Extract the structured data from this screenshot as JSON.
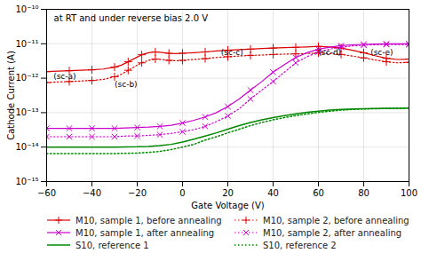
{
  "chart_data": {
    "type": "line",
    "title": "at RT and under reverse bias 2.0 V",
    "xlabel": "Gate Voltage (V)",
    "ylabel": "Cathode Current (A)",
    "xlim": [
      -60,
      100
    ],
    "ylim": [
      1e-15,
      1e-10
    ],
    "xticks": [
      -60,
      -40,
      -20,
      0,
      20,
      40,
      60,
      80,
      100
    ],
    "yticks": [
      {
        "value": 1e-15,
        "label": "10⁻¹⁵"
      },
      {
        "value": 1e-14,
        "label": "10⁻¹⁴"
      },
      {
        "value": 1e-13,
        "label": "10⁻¹³"
      },
      {
        "value": 1e-12,
        "label": "10⁻¹²"
      },
      {
        "value": 1e-11,
        "label": "10⁻¹¹"
      },
      {
        "value": 1e-10,
        "label": "10⁻¹⁰"
      }
    ],
    "log": "y",
    "grid": true,
    "legend": "bottom",
    "annotations": [
      {
        "text": "(sc-a)",
        "x": -57,
        "y": 9.5e-13
      },
      {
        "text": "(sc-b)",
        "x": -30,
        "y": 5.5e-13
      },
      {
        "text": "(sc-c)",
        "x": 17,
        "y": 4.8e-12
      },
      {
        "text": "(sc-d)",
        "x": 60,
        "y": 4.8e-12
      },
      {
        "text": "(sc-e)",
        "x": 83,
        "y": 4.8e-12
      }
    ],
    "series": [
      {
        "name": "M10, sample 1, before annealing",
        "color": "#dd0000",
        "line_style": "solid",
        "marker": "+",
        "x": [
          -60,
          -55,
          -50,
          -45,
          -40,
          -35,
          -30,
          -27,
          -24,
          -21,
          -18,
          -15,
          -12,
          -9,
          -6,
          -3,
          0,
          5,
          10,
          15,
          20,
          25,
          30,
          35,
          40,
          45,
          50,
          55,
          60,
          65,
          70,
          75,
          80,
          85,
          90,
          95,
          100
        ],
        "values": [
          1.55e-12,
          1.6e-12,
          1.65e-12,
          1.7e-12,
          1.75e-12,
          1.85e-12,
          2.1e-12,
          2.4e-12,
          3e-12,
          3.8e-12,
          4.8e-12,
          5.5e-12,
          5.8e-12,
          5.6e-12,
          5.3e-12,
          5.2e-12,
          5.3e-12,
          5.5e-12,
          5.8e-12,
          6.2e-12,
          6.5e-12,
          6.8e-12,
          7e-12,
          7.3e-12,
          7.5e-12,
          7.7e-12,
          7.9e-12,
          8.1e-12,
          8.4e-12,
          8.1e-12,
          7.5e-12,
          6.5e-12,
          5.5e-12,
          4.5e-12,
          3.8e-12,
          3.5e-12,
          3.6e-12
        ]
      },
      {
        "name": "M10, sample 2, before annealing",
        "color": "#dd0000",
        "line_style": "dotted",
        "marker": "+",
        "x": [
          -60,
          -55,
          -50,
          -45,
          -40,
          -35,
          -30,
          -27,
          -24,
          -21,
          -18,
          -15,
          -12,
          -9,
          -6,
          -3,
          0,
          5,
          10,
          15,
          20,
          25,
          30,
          35,
          40,
          45,
          50,
          55,
          60,
          65,
          70,
          75,
          80,
          85,
          90,
          95,
          100
        ],
        "values": [
          7.5e-13,
          7.8e-13,
          8e-13,
          8.3e-13,
          8.6e-13,
          9.2e-13,
          1.1e-12,
          1.3e-12,
          1.7e-12,
          2.2e-12,
          2.8e-12,
          3.3e-12,
          3.6e-12,
          3.5e-12,
          3.3e-12,
          3.2e-12,
          3.3e-12,
          3.5e-12,
          3.7e-12,
          4e-12,
          4.2e-12,
          4.4e-12,
          4.6e-12,
          4.7e-12,
          4.9e-12,
          5e-12,
          5.1e-12,
          5.2e-12,
          5.4e-12,
          5.2e-12,
          4.9e-12,
          4.4e-12,
          3.9e-12,
          3.4e-12,
          3e-12,
          2.8e-12,
          2.9e-12
        ]
      },
      {
        "name": "M10, sample 1, after annealing",
        "color": "#cc00cc",
        "line_style": "solid",
        "marker": "x",
        "x": [
          -60,
          -55,
          -50,
          -45,
          -40,
          -35,
          -30,
          -25,
          -20,
          -15,
          -10,
          -5,
          0,
          5,
          10,
          15,
          20,
          25,
          30,
          35,
          40,
          45,
          50,
          55,
          60,
          65,
          70,
          75,
          80,
          85,
          90,
          95,
          100
        ],
        "values": [
          3.5e-14,
          3.5e-14,
          3.5e-14,
          3.5e-14,
          3.5e-14,
          3.5e-14,
          3.5e-14,
          3.6e-14,
          3.7e-14,
          3.8e-14,
          4e-14,
          4.3e-14,
          5e-14,
          6e-14,
          7.5e-14,
          1e-13,
          1.5e-13,
          2.5e-13,
          4.5e-13,
          8e-13,
          1.5e-12,
          2.5e-12,
          4e-12,
          5.5e-12,
          7e-12,
          8e-12,
          8.8e-12,
          9.3e-12,
          9.6e-12,
          9.8e-12,
          9.9e-12,
          9.95e-12,
          9.95e-12
        ]
      },
      {
        "name": "M10, sample 2, after annealing",
        "color": "#cc00cc",
        "line_style": "dotted",
        "marker": "x",
        "x": [
          -60,
          -55,
          -50,
          -45,
          -40,
          -35,
          -30,
          -25,
          -20,
          -15,
          -10,
          -5,
          0,
          5,
          10,
          15,
          20,
          25,
          30,
          35,
          40,
          45,
          50,
          55,
          60,
          65,
          70,
          75,
          80,
          85,
          90,
          95,
          100
        ],
        "values": [
          2e-14,
          2e-14,
          2e-14,
          2e-14,
          2e-14,
          2e-14,
          2e-14,
          2.1e-14,
          2.1e-14,
          2.2e-14,
          2.3e-14,
          2.5e-14,
          2.8e-14,
          3.2e-14,
          4e-14,
          5.5e-14,
          8e-14,
          1.3e-13,
          2.5e-13,
          4.5e-13,
          8e-13,
          1.5e-12,
          2.8e-12,
          4.2e-12,
          5.8e-12,
          7e-12,
          8e-12,
          8.7e-12,
          9.1e-12,
          9.4e-12,
          9.5e-12,
          9.5e-12,
          9.5e-12
        ]
      },
      {
        "name": "S10, reference 1",
        "color": "#008800",
        "line_style": "solid",
        "x": [
          -60,
          -50,
          -40,
          -30,
          -20,
          -15,
          -10,
          -5,
          0,
          5,
          10,
          15,
          20,
          25,
          30,
          35,
          40,
          45,
          50,
          55,
          60,
          65,
          70,
          75,
          80,
          85,
          90,
          95,
          100
        ],
        "values": [
          1e-14,
          1e-14,
          1e-14,
          1e-14,
          1.02e-14,
          1.05e-14,
          1.1e-14,
          1.2e-14,
          1.4e-14,
          1.7e-14,
          2.1e-14,
          2.6e-14,
          3.3e-14,
          4.2e-14,
          5.2e-14,
          6.2e-14,
          7.2e-14,
          8.2e-14,
          9.2e-14,
          1.02e-13,
          1.1e-13,
          1.18e-13,
          1.24e-13,
          1.28e-13,
          1.3e-13,
          1.32e-13,
          1.33e-13,
          1.34e-13,
          1.35e-13
        ]
      },
      {
        "name": "S10, reference 2",
        "color": "#008800",
        "line_style": "dotted",
        "x": [
          -60,
          -50,
          -40,
          -30,
          -20,
          -15,
          -10,
          -5,
          0,
          5,
          10,
          15,
          20,
          25,
          30,
          35,
          40,
          45,
          50,
          55,
          60,
          65,
          70,
          75,
          80,
          85,
          90,
          95,
          100
        ],
        "values": [
          6.5e-15,
          6.5e-15,
          6.5e-15,
          6.5e-15,
          6.7e-15,
          7e-15,
          7.5e-15,
          8.5e-15,
          1e-14,
          1.2e-14,
          1.6e-14,
          2e-14,
          2.6e-14,
          3.3e-14,
          4.2e-14,
          5.2e-14,
          6.2e-14,
          7.2e-14,
          8.2e-14,
          9.2e-14,
          1.02e-13,
          1.1e-13,
          1.18e-13,
          1.24e-13,
          1.28e-13,
          1.3e-13,
          1.32e-13,
          1.34e-13,
          1.35e-13
        ]
      }
    ]
  }
}
